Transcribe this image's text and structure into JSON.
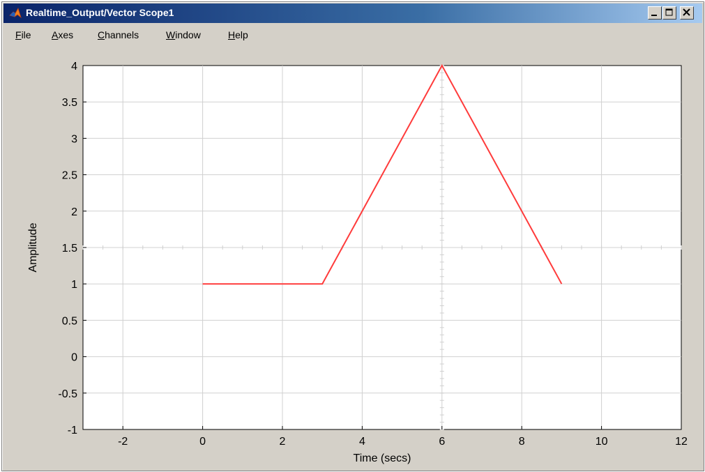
{
  "window": {
    "title": "Realtime_Output/Vector Scope1",
    "buttons": [
      "minimize",
      "maximize",
      "close"
    ]
  },
  "menu": [
    "File",
    "Axes",
    "Channels",
    "Window",
    "Help"
  ],
  "colors": {
    "titlebar_start": "#0a246a",
    "chrome": "#d4d0c8",
    "plot_bg": "#ffffff",
    "grid": "#d0d0d0",
    "line": "#ff3b3b"
  },
  "chart_data": {
    "type": "line",
    "xlabel": "Time (secs)",
    "ylabel": "Amplitude",
    "xlim": [
      -3,
      12
    ],
    "ylim": [
      -1,
      4
    ],
    "x_ticks": [
      -2,
      0,
      2,
      4,
      6,
      8,
      10,
      12
    ],
    "x_tick_labels": [
      "-2",
      "0",
      "2",
      "4",
      "6",
      "8",
      "10",
      "12"
    ],
    "y_ticks": [
      -1,
      -0.5,
      0,
      0.5,
      1,
      1.5,
      2,
      2.5,
      3,
      3.5,
      4
    ],
    "y_tick_labels": [
      "-1",
      "-0.5",
      "0",
      "0.5",
      "1",
      "1.5",
      "2",
      "2.5",
      "3",
      "3.5",
      "4"
    ],
    "grid": true,
    "series": [
      {
        "x": [
          0,
          3,
          6,
          9
        ],
        "y": [
          1,
          1,
          4,
          1
        ],
        "color": "#ff3b3b"
      }
    ]
  }
}
